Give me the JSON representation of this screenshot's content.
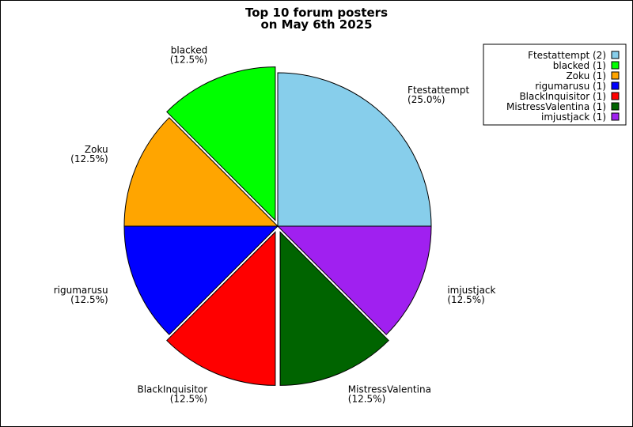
{
  "chart_data": {
    "type": "pie",
    "title": "Top 10 forum posters",
    "subtitle": "on May 6th 2025",
    "slices": [
      {
        "name": "Ftestattempt",
        "posts": 2,
        "percent": "(25.0%)",
        "legend": "Ftestattempt (2)",
        "color": "#87ceeb",
        "exploded": false
      },
      {
        "name": "imjustjack",
        "posts": 1,
        "percent": "(12.5%)",
        "legend": "imjustjack (1)",
        "color": "#a020f0",
        "exploded": false
      },
      {
        "name": "MistressValentina",
        "posts": 1,
        "percent": "(12.5%)",
        "legend": "MistressValentina (1)",
        "color": "#006400",
        "exploded": true
      },
      {
        "name": "BlackInquisitor",
        "posts": 1,
        "percent": "(12.5%)",
        "legend": "BlackInquisitor (1)",
        "color": "#ff0000",
        "exploded": true
      },
      {
        "name": "rigumarusu",
        "posts": 1,
        "percent": "(12.5%)",
        "legend": "rigumarusu (1)",
        "color": "#0000ff",
        "exploded": false
      },
      {
        "name": "Zoku",
        "posts": 1,
        "percent": "(12.5%)",
        "legend": "Zoku (1)",
        "color": "#ffa500",
        "exploded": false
      },
      {
        "name": "blacked",
        "posts": 1,
        "percent": "(12.5%)",
        "legend": "blacked (1)",
        "color": "#00ff00",
        "exploded": true
      }
    ],
    "legend_order": [
      "Ftestattempt",
      "blacked",
      "Zoku",
      "rigumarusu",
      "BlackInquisitor",
      "MistressValentina",
      "imjustjack"
    ],
    "legend_position": "top-right"
  }
}
